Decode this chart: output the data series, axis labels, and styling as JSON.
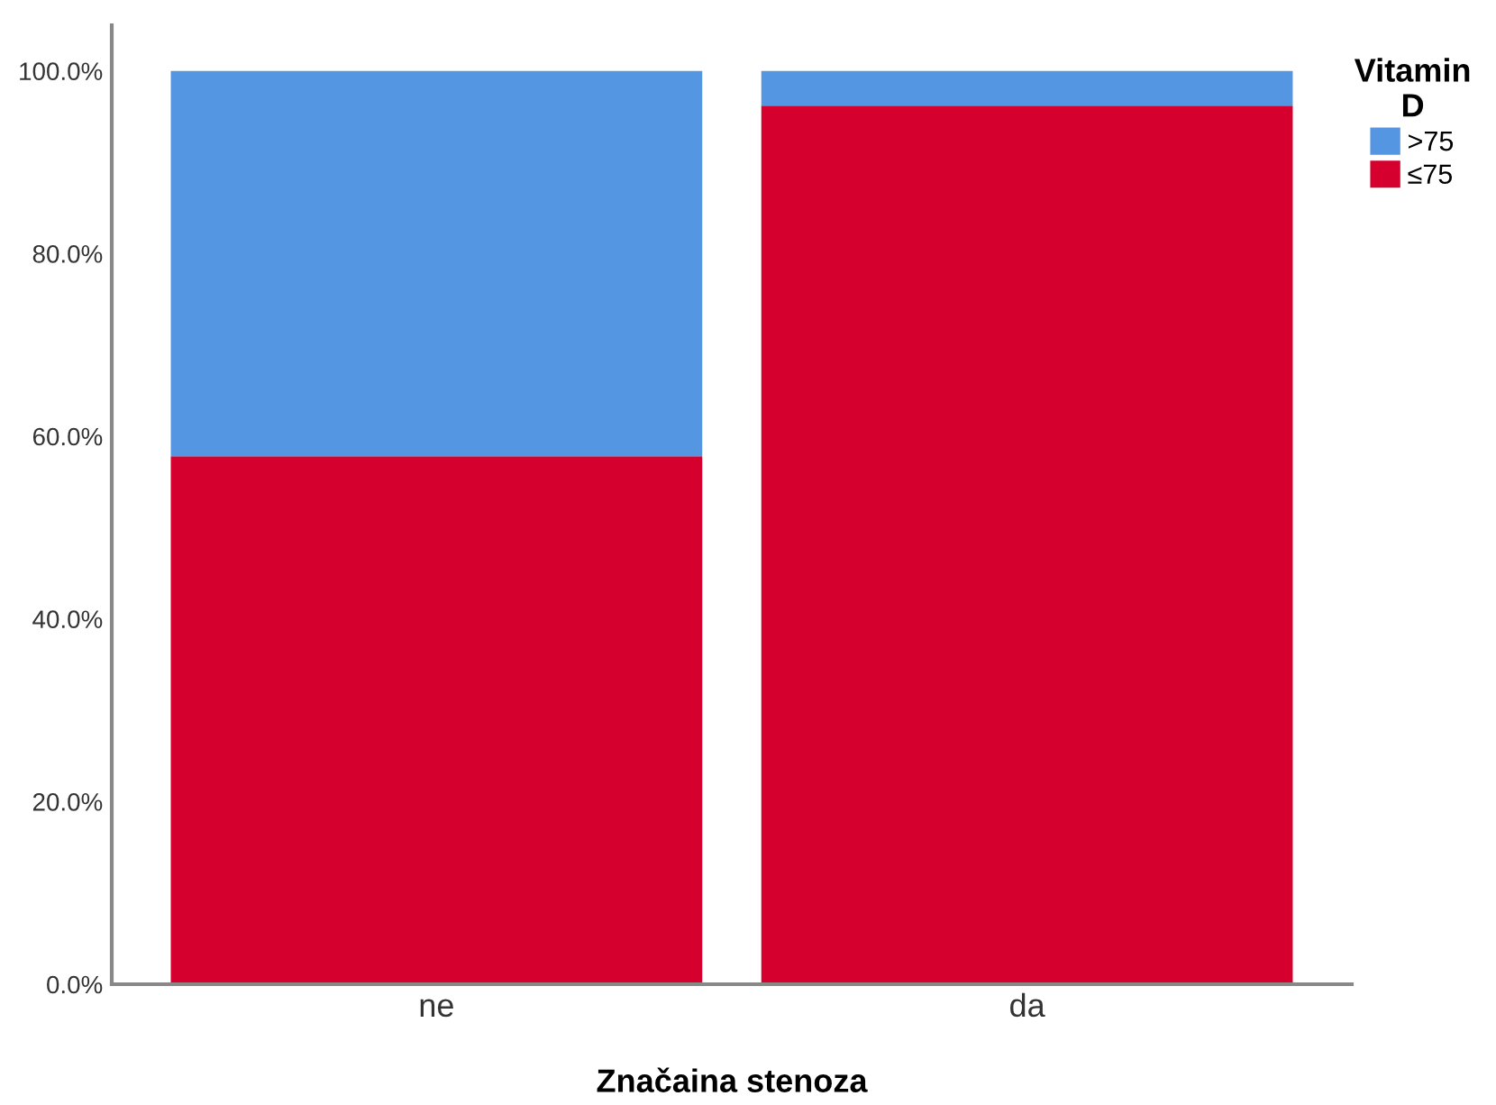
{
  "chart_data": {
    "type": "bar",
    "stacked": true,
    "xlabel": "Značaina stenoza",
    "legend_title": "Vitamin\nD",
    "legend": "top right",
    "categories": [
      "ne",
      "da"
    ],
    "series": [
      {
        "name": "≤75",
        "color": "#d5002d",
        "values": [
          57.8,
          96.2
        ]
      },
      {
        "name": ">75",
        "color": "#5596e2",
        "values": [
          42.2,
          3.8
        ]
      }
    ],
    "ylim": [
      0,
      105
    ],
    "yticks": [
      {
        "value": 0,
        "label": "0.0%"
      },
      {
        "value": 20,
        "label": "20.0%"
      },
      {
        "value": 40,
        "label": "40.0%"
      },
      {
        "value": 60,
        "label": "60.0%"
      },
      {
        "value": 80,
        "label": "80.0%"
      },
      {
        "value": 100,
        "label": "100.0%"
      }
    ],
    "grid": false
  }
}
